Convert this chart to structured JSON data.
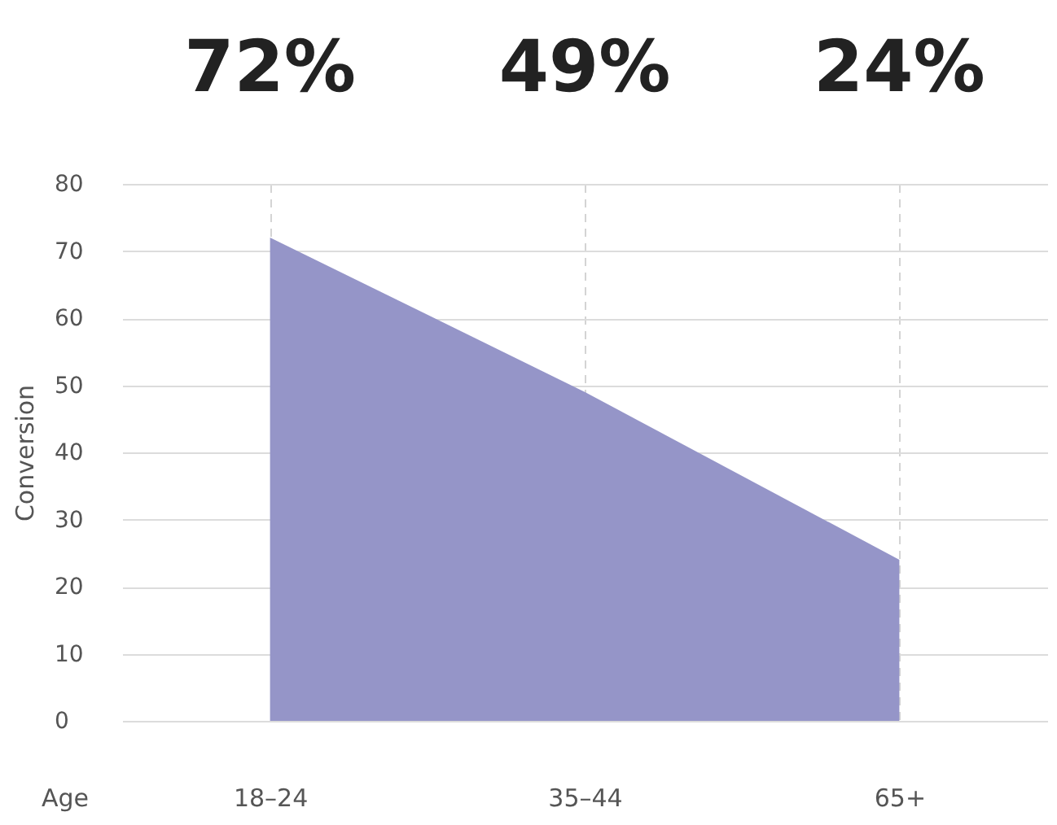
{
  "chart_data": {
    "type": "area",
    "xlabel": "Age",
    "ylabel": "Conversion",
    "categories": [
      "18–24",
      "35–44",
      "65+"
    ],
    "series": [
      {
        "color": "#9595c8",
        "values": [
          72,
          49,
          24
        ],
        "value_labels": [
          "72%",
          "49%",
          "24%"
        ]
      }
    ],
    "ylim": [
      0,
      80
    ],
    "yticks": [
      0,
      10,
      20,
      30,
      40,
      50,
      60,
      70,
      80
    ],
    "grid": true
  }
}
